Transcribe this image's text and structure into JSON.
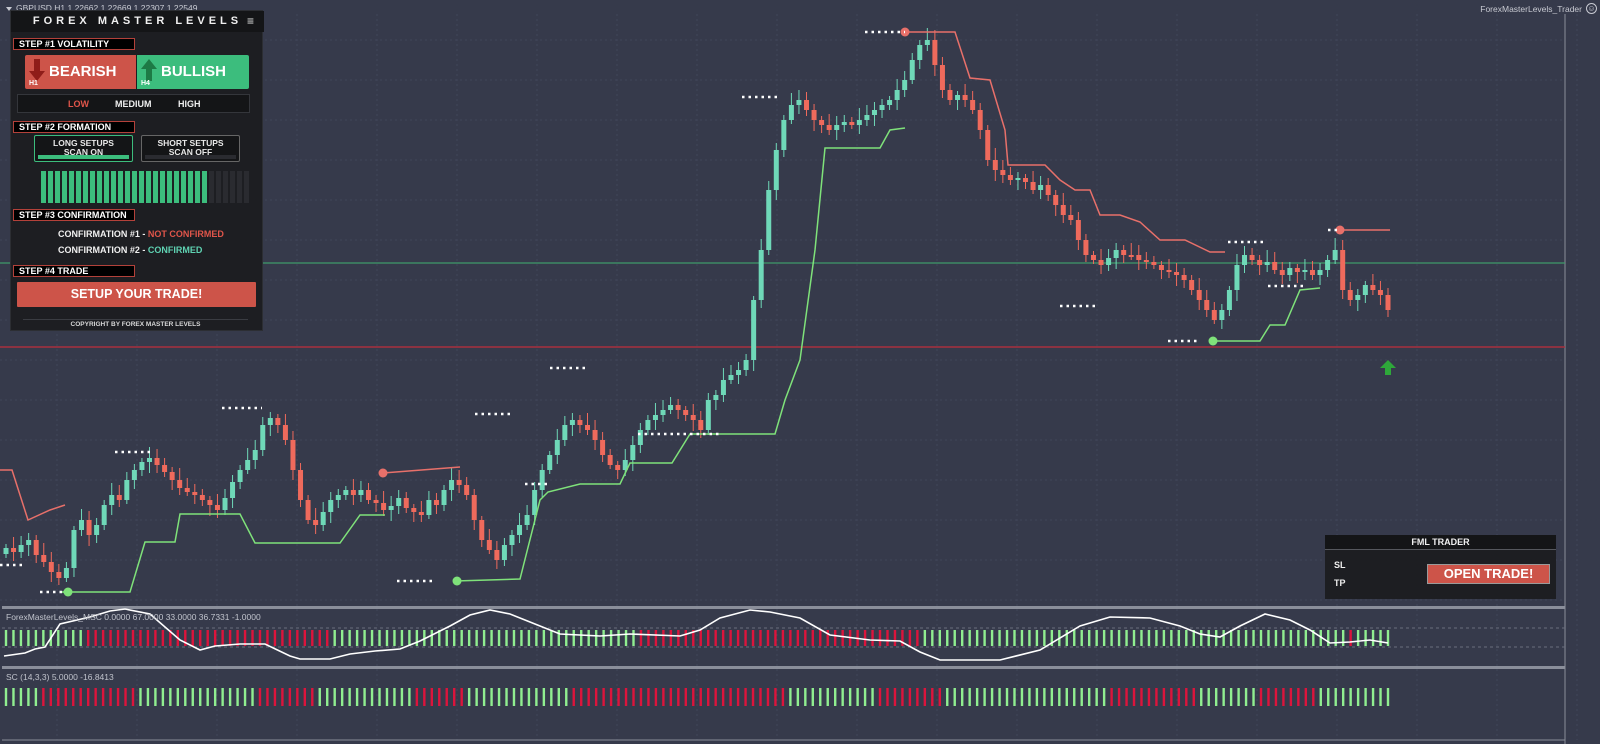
{
  "header": {
    "symbol_info": "GBPUSD,H1  1.22662 1.22669 1.22307 1.22549",
    "ea_name": "ForexMasterLevels_Trader"
  },
  "panel": {
    "title": "FOREX MASTER LEVELS",
    "menu_icon": "hamburger-icon",
    "step1": "STEP #1 VOLATILITY",
    "bearish": {
      "label": "BEARISH",
      "timeframe": "H1",
      "color": "#cd5449"
    },
    "bullish": {
      "label": "BULLISH",
      "timeframe": "H4",
      "color": "#3cbd7d"
    },
    "volatility": {
      "low": "LOW",
      "medium": "MEDIUM",
      "high": "HIGH",
      "selected": "LOW"
    },
    "step2": "STEP #2 FORMATION",
    "long_scan": {
      "line1": "LONG SETUPS",
      "line2": "SCAN ON"
    },
    "short_scan": {
      "line1": "SHORT SETUPS",
      "line2": "SCAN OFF"
    },
    "meter": {
      "filled": 24,
      "total": 30
    },
    "step3": "STEP #3 CONFIRMATION",
    "confirmation1": {
      "label": "CONFIRMATION #1 -",
      "status": "NOT CONFIRMED"
    },
    "confirmation2": {
      "label": "CONFIRMATION #2 -",
      "status": "CONFIRMED"
    },
    "step4": "STEP #4 TRADE",
    "setup_button": "SETUP YOUR TRADE!",
    "copyright": "COPYRIGHT BY FOREX MASTER LEVELS"
  },
  "trader": {
    "title": "FML TRADER",
    "sl_label": "SL",
    "tp_label": "TP",
    "open_button": "OPEN TRADE!"
  },
  "subwindow1": {
    "label": "ForexMasterLevels_MSC 0.0000 67.0000 33.0000 36.7331 -1.0000"
  },
  "subwindow2": {
    "label": "SC (14,3,3) 5.0000 -16.8413"
  },
  "colors": {
    "background": "#363a4b",
    "bull_candle": "#6fd8b8",
    "bear_candle": "#ef6a5c",
    "support_line": "#7fe27a",
    "resistance_line": "#e8706a",
    "hline_green": "#3f9a6a",
    "hline_red": "#a8303e",
    "hist_green": "#90ee90",
    "hist_red": "#dc143c"
  },
  "chart": {
    "price_path": [
      548,
      552,
      545,
      540,
      555,
      562,
      572,
      578,
      568,
      530,
      520,
      535,
      525,
      505,
      495,
      500,
      480,
      470,
      462,
      458,
      465,
      472,
      480,
      488,
      492,
      495,
      500,
      505,
      510,
      498,
      482,
      470,
      460,
      450,
      425,
      418,
      425,
      440,
      470,
      500,
      520,
      525,
      512,
      500,
      495,
      490,
      495,
      490,
      500,
      503,
      510,
      506,
      498,
      508,
      512,
      515,
      500,
      505,
      490,
      480,
      485,
      495,
      520,
      540,
      550,
      560,
      545,
      535,
      525,
      515,
      490,
      470,
      455,
      440,
      425,
      420,
      425,
      430,
      440,
      455,
      465,
      470,
      460,
      445,
      430,
      420,
      415,
      410,
      405,
      410,
      415,
      420,
      430,
      400,
      395,
      380,
      375,
      370,
      360,
      300,
      250,
      190,
      150,
      120,
      105,
      100,
      110,
      120,
      125,
      130,
      125,
      122,
      125,
      120,
      115,
      110,
      105,
      100,
      90,
      80,
      60,
      45,
      40,
      65,
      90,
      100,
      95,
      100,
      110,
      130,
      160,
      170,
      175,
      180,
      178,
      182,
      190,
      185,
      195,
      205,
      215,
      220,
      240,
      255,
      260,
      265,
      258,
      250,
      255,
      255,
      260,
      262,
      265,
      270,
      272,
      275,
      280,
      290,
      300,
      310,
      320,
      310,
      290,
      265,
      255,
      260,
      265,
      262,
      270,
      275,
      268,
      272,
      270,
      275,
      270,
      260,
      250,
      290,
      300,
      295,
      285,
      290,
      295,
      310
    ]
  }
}
